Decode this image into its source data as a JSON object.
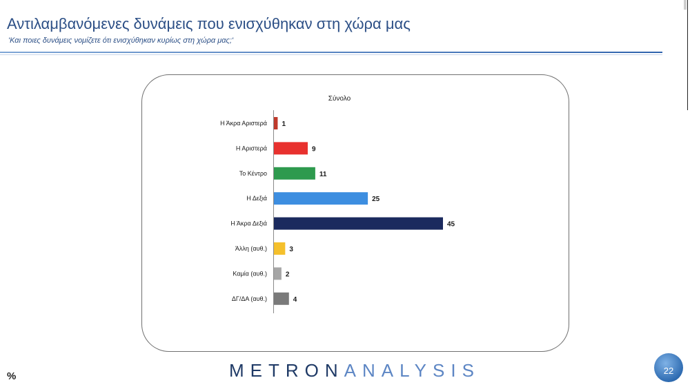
{
  "header": {
    "title": "Αντιλαμβανόμενες δυνάμεις που ενισχύθηκαν στη χώρα μας",
    "subtitle": "'Και ποιες δυνάμεις νομίζετε ότι ενισχύθηκαν κυρίως στη χώρα μας;'"
  },
  "footer": {
    "logo_dark": "METRON",
    "logo_light": "ANALYSIS",
    "unit": "%",
    "page_number": "22"
  },
  "chart_data": {
    "type": "bar",
    "orientation": "horizontal",
    "title": "Σύνολο",
    "categories": [
      "Η Άκρα Αριστερά",
      "Η Αριστερά",
      "Το Κέντρο",
      "Η Δεξιά",
      "Η Άκρα Δεξιά",
      "Άλλη (αυθ.)",
      "Καμία (αυθ.)",
      "ΔΓ/ΔΑ (αυθ.)"
    ],
    "values": [
      1,
      9,
      11,
      25,
      45,
      3,
      2,
      4
    ],
    "colors": [
      "#c0392b",
      "#e8312e",
      "#2e9a4e",
      "#3d8ee0",
      "#1b2a5e",
      "#f5c02c",
      "#a6a6a6",
      "#7a7a7a"
    ],
    "xlim": [
      0,
      45
    ],
    "grid": false,
    "legend": "none"
  }
}
